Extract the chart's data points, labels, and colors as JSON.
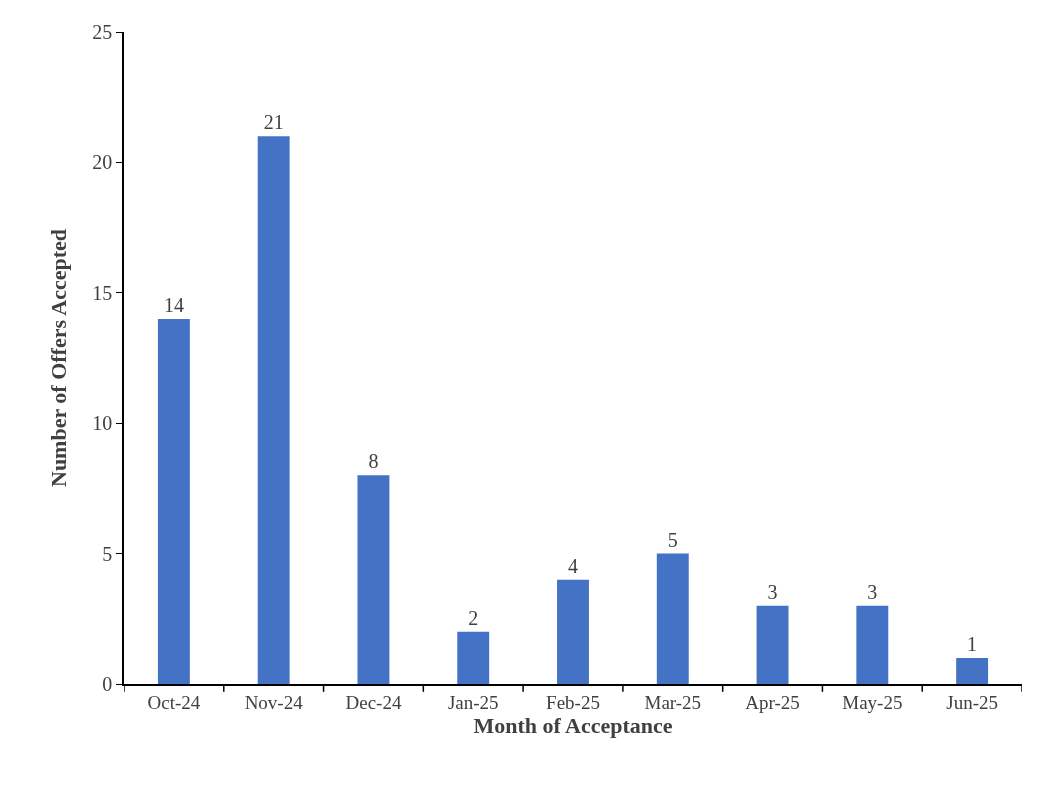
{
  "chart_data": {
    "type": "bar",
    "xlabel": "Month of Acceptance",
    "ylabel": "Number of Offers Accepted",
    "categories": [
      "Oct-24",
      "Nov-24",
      "Dec-24",
      "Jan-25",
      "Feb-25",
      "Mar-25",
      "Apr-25",
      "May-25",
      "Jun-25"
    ],
    "values": [
      14,
      21,
      8,
      2,
      4,
      5,
      3,
      3,
      1
    ],
    "color": "#4472c4",
    "ylim": [
      0,
      25
    ],
    "yticks": [
      0,
      5,
      10,
      15,
      20,
      25
    ],
    "data_labels": true
  }
}
